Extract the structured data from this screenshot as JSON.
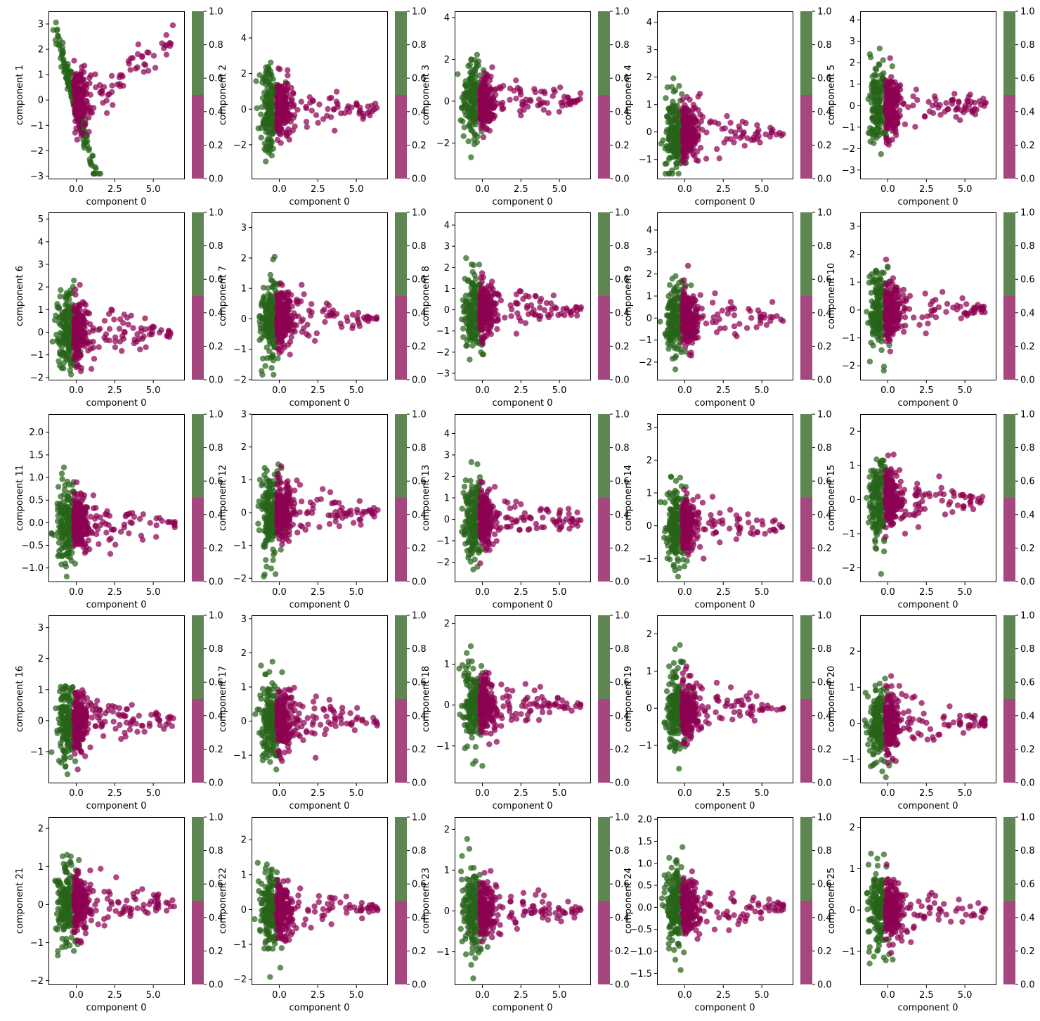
{
  "figure": {
    "colors": {
      "class_0": "#8e0152",
      "class_1": "#276419"
    },
    "colorbar": {
      "range": [
        0,
        1
      ],
      "ticks": [
        "0.0",
        "0.2",
        "0.4",
        "0.6",
        "0.8",
        "1.0"
      ],
      "colors": [
        "#a6467f",
        "#5e8652"
      ]
    }
  },
  "chart_data": [
    {
      "type": "scatter",
      "xlabel": "component 0",
      "ylabel": "component 1",
      "xlim": [
        -1.8,
        7.0
      ],
      "ylim": [
        -3.1,
        3.5
      ],
      "xticks": [
        "0.0",
        "2.5",
        "5.0"
      ],
      "yticks": [
        "−3",
        "−2",
        "−1",
        "0",
        "1",
        "2",
        "3"
      ],
      "ytick_values": [
        -3,
        -2,
        -1,
        0,
        1,
        2,
        3
      ]
    },
    {
      "type": "scatter",
      "xlabel": "component 0",
      "ylabel": "component 2",
      "xlim": [
        -1.8,
        7.0
      ],
      "ylim": [
        -3.9,
        5.5
      ],
      "xticks": [
        "0.0",
        "2.5",
        "5.0"
      ],
      "yticks": [
        "−2",
        "0",
        "2",
        "4"
      ],
      "ytick_values": [
        -2,
        0,
        2,
        4
      ]
    },
    {
      "type": "scatter",
      "xlabel": "component 0",
      "ylabel": "component 3",
      "xlim": [
        -1.8,
        7.0
      ],
      "ylim": [
        -3.7,
        4.3
      ],
      "xticks": [
        "0.0",
        "2.5",
        "5.0"
      ],
      "yticks": [
        "−2",
        "0",
        "2",
        "4"
      ],
      "ytick_values": [
        -2,
        0,
        2,
        4
      ]
    },
    {
      "type": "scatter",
      "xlabel": "component 0",
      "ylabel": "component 4",
      "xlim": [
        -1.8,
        7.0
      ],
      "ylim": [
        -1.7,
        4.4
      ],
      "xticks": [
        "0.0",
        "2.5",
        "5.0"
      ],
      "yticks": [
        "−1",
        "0",
        "1",
        "2",
        "3",
        "4"
      ],
      "ytick_values": [
        -1,
        0,
        1,
        2,
        3,
        4
      ]
    },
    {
      "type": "scatter",
      "xlabel": "component 0",
      "ylabel": "component 5",
      "xlim": [
        -1.8,
        7.0
      ],
      "ylim": [
        -3.4,
        4.4
      ],
      "xticks": [
        "0.0",
        "2.5",
        "5.0"
      ],
      "yticks": [
        "−3",
        "−2",
        "−1",
        "0",
        "1",
        "2",
        "3",
        "4"
      ],
      "ytick_values": [
        -3,
        -2,
        -1,
        0,
        1,
        2,
        3,
        4
      ]
    },
    {
      "type": "scatter",
      "xlabel": "component 0",
      "ylabel": "component 6",
      "xlim": [
        -1.8,
        7.0
      ],
      "ylim": [
        -2.1,
        5.3
      ],
      "xticks": [
        "0.0",
        "2.5",
        "5.0"
      ],
      "yticks": [
        "−2",
        "−1",
        "0",
        "1",
        "2",
        "3",
        "4",
        "5"
      ],
      "ytick_values": [
        -2,
        -1,
        0,
        1,
        2,
        3,
        4,
        5
      ]
    },
    {
      "type": "scatter",
      "xlabel": "component 0",
      "ylabel": "component 7",
      "xlim": [
        -1.8,
        7.0
      ],
      "ylim": [
        -2.0,
        3.5
      ],
      "xticks": [
        "0.0",
        "2.5",
        "5.0"
      ],
      "yticks": [
        "−2",
        "−1",
        "0",
        "1",
        "2",
        "3"
      ],
      "ytick_values": [
        -2,
        -1,
        0,
        1,
        2,
        3
      ]
    },
    {
      "type": "scatter",
      "xlabel": "component 0",
      "ylabel": "component 8",
      "xlim": [
        -1.8,
        7.0
      ],
      "ylim": [
        -3.3,
        4.6
      ],
      "xticks": [
        "0.0",
        "2.5",
        "5.0"
      ],
      "yticks": [
        "−3",
        "−2",
        "−1",
        "0",
        "1",
        "2",
        "3",
        "4"
      ],
      "ytick_values": [
        -3,
        -2,
        -1,
        0,
        1,
        2,
        3,
        4
      ]
    },
    {
      "type": "scatter",
      "xlabel": "component 0",
      "ylabel": "component 9",
      "xlim": [
        -1.8,
        7.0
      ],
      "ylim": [
        -2.8,
        4.8
      ],
      "xticks": [
        "0.0",
        "2.5",
        "5.0"
      ],
      "yticks": [
        "−2",
        "−1",
        "0",
        "1",
        "2",
        "3",
        "4"
      ],
      "ytick_values": [
        -2,
        -1,
        0,
        1,
        2,
        3,
        4
      ]
    },
    {
      "type": "scatter",
      "xlabel": "component 0",
      "ylabel": "component 10",
      "xlim": [
        -1.8,
        7.0
      ],
      "ylim": [
        -2.5,
        3.5
      ],
      "xticks": [
        "0.0",
        "2.5",
        "5.0"
      ],
      "yticks": [
        "−2",
        "−1",
        "0",
        "1",
        "2",
        "3"
      ],
      "ytick_values": [
        -2,
        -1,
        0,
        1,
        2,
        3
      ]
    },
    {
      "type": "scatter",
      "xlabel": "component 0",
      "ylabel": "component 11",
      "xlim": [
        -1.8,
        7.0
      ],
      "ylim": [
        -1.3,
        2.4
      ],
      "xticks": [
        "0.0",
        "2.5",
        "5.0"
      ],
      "yticks": [
        "−1.0",
        "−0.5",
        "0.0",
        "0.5",
        "1.0",
        "1.5",
        "2.0"
      ],
      "ytick_values": [
        -1.0,
        -0.5,
        0.0,
        0.5,
        1.0,
        1.5,
        2.0
      ]
    },
    {
      "type": "scatter",
      "xlabel": "component 0",
      "ylabel": "component 12",
      "xlim": [
        -1.8,
        7.0
      ],
      "ylim": [
        -2.1,
        3.0
      ],
      "xticks": [
        "0.0",
        "2.5",
        "5.0"
      ],
      "yticks": [
        "−2",
        "−1",
        "0",
        "1",
        "2",
        "3"
      ],
      "ytick_values": [
        -2,
        -1,
        0,
        1,
        2,
        3
      ]
    },
    {
      "type": "scatter",
      "xlabel": "component 0",
      "ylabel": "component 13",
      "xlim": [
        -1.8,
        7.0
      ],
      "ylim": [
        -2.9,
        4.9
      ],
      "xticks": [
        "0.0",
        "2.5",
        "5.0"
      ],
      "yticks": [
        "−2",
        "−1",
        "0",
        "1",
        "2",
        "3",
        "4"
      ],
      "ytick_values": [
        -2,
        -1,
        0,
        1,
        2,
        3,
        4
      ]
    },
    {
      "type": "scatter",
      "xlabel": "component 0",
      "ylabel": "component 14",
      "xlim": [
        -1.8,
        7.0
      ],
      "ylim": [
        -1.7,
        3.4
      ],
      "xticks": [
        "0.0",
        "2.5",
        "5.0"
      ],
      "yticks": [
        "−1",
        "0",
        "1",
        "2",
        "3"
      ],
      "ytick_values": [
        -1,
        0,
        1,
        2,
        3
      ]
    },
    {
      "type": "scatter",
      "xlabel": "component 0",
      "ylabel": "component 15",
      "xlim": [
        -1.8,
        7.0
      ],
      "ylim": [
        -2.4,
        2.5
      ],
      "xticks": [
        "0.0",
        "2.5",
        "5.0"
      ],
      "yticks": [
        "−2",
        "−1",
        "0",
        "1",
        "2"
      ],
      "ytick_values": [
        -2,
        -1,
        0,
        1,
        2
      ]
    },
    {
      "type": "scatter",
      "xlabel": "component 0",
      "ylabel": "component 16",
      "xlim": [
        -1.8,
        7.0
      ],
      "ylim": [
        -2.0,
        3.4
      ],
      "xticks": [
        "0.0",
        "2.5",
        "5.0"
      ],
      "yticks": [
        "−1",
        "0",
        "1",
        "2",
        "3"
      ],
      "ytick_values": [
        -1,
        0,
        1,
        2,
        3
      ]
    },
    {
      "type": "scatter",
      "xlabel": "component 0",
      "ylabel": "component 17",
      "xlim": [
        -1.8,
        7.0
      ],
      "ylim": [
        -1.8,
        3.1
      ],
      "xticks": [
        "0.0",
        "2.5",
        "5.0"
      ],
      "yticks": [
        "−1",
        "0",
        "1",
        "2",
        "3"
      ],
      "ytick_values": [
        -1,
        0,
        1,
        2,
        3
      ]
    },
    {
      "type": "scatter",
      "xlabel": "component 0",
      "ylabel": "component 18",
      "xlim": [
        -1.8,
        7.0
      ],
      "ylim": [
        -1.9,
        2.2
      ],
      "xticks": [
        "0.0",
        "2.5",
        "5.0"
      ],
      "yticks": [
        "−1",
        "0",
        "1",
        "2"
      ],
      "ytick_values": [
        -1,
        0,
        1,
        2
      ]
    },
    {
      "type": "scatter",
      "xlabel": "component 0",
      "ylabel": "component 19",
      "xlim": [
        -1.8,
        7.0
      ],
      "ylim": [
        -2.0,
        2.5
      ],
      "xticks": [
        "0.0",
        "2.5",
        "5.0"
      ],
      "yticks": [
        "−1",
        "0",
        "1",
        "2"
      ],
      "ytick_values": [
        -1,
        0,
        1,
        2
      ]
    },
    {
      "type": "scatter",
      "xlabel": "component 0",
      "ylabel": "component 20",
      "xlim": [
        -1.8,
        7.0
      ],
      "ylim": [
        -1.65,
        3.0
      ],
      "xticks": [
        "0.0",
        "2.5",
        "5.0"
      ],
      "yticks": [
        "−1",
        "0",
        "1",
        "2"
      ],
      "ytick_values": [
        -1,
        0,
        1,
        2
      ]
    },
    {
      "type": "scatter",
      "xlabel": "component 0",
      "ylabel": "component 21",
      "xlim": [
        -1.8,
        7.0
      ],
      "ylim": [
        -2.1,
        2.3
      ],
      "xticks": [
        "0.0",
        "2.5",
        "5.0"
      ],
      "yticks": [
        "−2",
        "−1",
        "0",
        "1",
        "2"
      ],
      "ytick_values": [
        -2,
        -1,
        0,
        1,
        2
      ]
    },
    {
      "type": "scatter",
      "xlabel": "component 0",
      "ylabel": "component 22",
      "xlim": [
        -1.8,
        7.0
      ],
      "ylim": [
        -2.15,
        2.65
      ],
      "xticks": [
        "0.0",
        "2.5",
        "5.0"
      ],
      "yticks": [
        "−2",
        "−1",
        "0",
        "1",
        "2"
      ],
      "ytick_values": [
        -2,
        -1,
        0,
        1,
        2
      ]
    },
    {
      "type": "scatter",
      "xlabel": "component 0",
      "ylabel": "component 23",
      "xlim": [
        -1.8,
        7.0
      ],
      "ylim": [
        -1.8,
        2.3
      ],
      "xticks": [
        "0.0",
        "2.5",
        "5.0"
      ],
      "yticks": [
        "−1",
        "0",
        "1",
        "2"
      ],
      "ytick_values": [
        -1,
        0,
        1,
        2
      ]
    },
    {
      "type": "scatter",
      "xlabel": "component 0",
      "ylabel": "component 24",
      "xlim": [
        -1.8,
        7.0
      ],
      "ylim": [
        -1.75,
        2.05
      ],
      "xticks": [
        "0.0",
        "2.5",
        "5.0"
      ],
      "yticks": [
        "−1.5",
        "−1.0",
        "−0.5",
        "0.0",
        "0.5",
        "1.0",
        "1.5",
        "2.0"
      ],
      "ytick_values": [
        -1.5,
        -1.0,
        -0.5,
        0.0,
        0.5,
        1.0,
        1.5,
        2.0
      ]
    },
    {
      "type": "scatter",
      "xlabel": "component 0",
      "ylabel": "component 25",
      "xlim": [
        -1.8,
        7.0
      ],
      "ylim": [
        -1.8,
        2.25
      ],
      "xticks": [
        "0.0",
        "2.5",
        "5.0"
      ],
      "yticks": [
        "−1",
        "0",
        "1",
        "2"
      ],
      "ytick_values": [
        -1,
        0,
        1,
        2
      ]
    }
  ]
}
